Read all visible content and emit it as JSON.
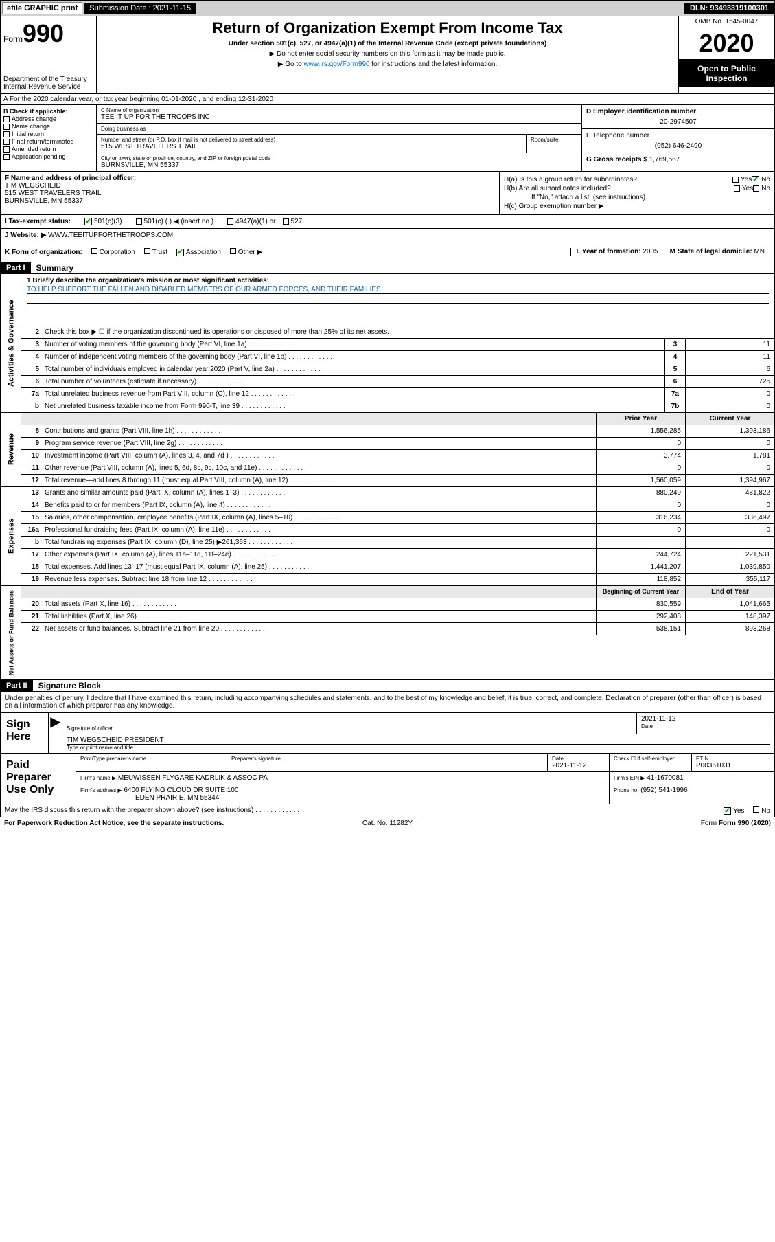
{
  "topbar": {
    "efile": "efile GRAPHIC print",
    "submission_label": "Submission Date : 2021-11-15",
    "dln": "DLN: 93493319100301"
  },
  "header": {
    "form_word": "Form",
    "form_num": "990",
    "dept": "Department of the Treasury Internal Revenue Service",
    "title": "Return of Organization Exempt From Income Tax",
    "subtitle": "Under section 501(c), 527, or 4947(a)(1) of the Internal Revenue Code (except private foundations)",
    "note1": "▶ Do not enter social security numbers on this form as it may be made public.",
    "note2_pre": "▶ Go to ",
    "note2_link": "www.irs.gov/Form990",
    "note2_post": " for instructions and the latest information.",
    "omb": "OMB No. 1545-0047",
    "year": "2020",
    "open": "Open to Public Inspection"
  },
  "row_a": "A For the 2020 calendar year, or tax year beginning 01-01-2020    , and ending 12-31-2020",
  "col_b": {
    "label": "B Check if applicable:",
    "items": [
      "Address change",
      "Name change",
      "Initial return",
      "Final return/terminated",
      "Amended return",
      "Application pending"
    ]
  },
  "col_c": {
    "name_label": "C Name of organization",
    "name": "TEE IT UP FOR THE TROOPS INC",
    "dba_label": "Doing business as",
    "dba": "",
    "addr_label": "Number and street (or P.O. box if mail is not delivered to street address)",
    "addr": "515 WEST TRAVELERS TRAIL",
    "room_label": "Room/suite",
    "room": "",
    "city_label": "City or town, state or province, country, and ZIP or foreign postal code",
    "city": "BURNSVILLE, MN  55337"
  },
  "col_d": {
    "ein_label": "D Employer identification number",
    "ein": "20-2974507",
    "phone_label": "E Telephone number",
    "phone": "(952) 646-2490",
    "gross_label": "G Gross receipts $",
    "gross": "1,769,567"
  },
  "col_f": {
    "label": "F Name and address of principal officer:",
    "name": "TIM WEGSCHEID",
    "addr1": "515 WEST TRAVELERS TRAIL",
    "addr2": "BURNSVILLE, MN  55337"
  },
  "col_h": {
    "ha": "H(a)  Is this a group return for subordinates?",
    "hb": "H(b)  Are all subordinates included?",
    "hb_note": "If \"No,\" attach a list. (see instructions)",
    "hc": "H(c)  Group exemption number ▶",
    "yes": "Yes",
    "no": "No"
  },
  "row_i": {
    "label": "I  Tax-exempt status:",
    "o1": "501(c)(3)",
    "o2": "501(c) (  ) ◀ (insert no.)",
    "o3": "4947(a)(1) or",
    "o4": "527"
  },
  "row_j": {
    "label": "J  Website: ▶",
    "val": "WWW.TEEITUPFORTHETROOPS.COM"
  },
  "row_k": {
    "label": "K Form of organization:",
    "opts": [
      "Corporation",
      "Trust",
      "Association",
      "Other ▶"
    ],
    "l_label": "L Year of formation:",
    "l_val": "2005",
    "m_label": "M State of legal domicile:",
    "m_val": "MN"
  },
  "part1": {
    "hdr": "Part I",
    "title": "Summary",
    "q1_label": "1  Briefly describe the organization's mission or most significant activities:",
    "q1_val": "TO HELP SUPPORT THE FALLEN AND DISABLED MEMBERS OF OUR ARMED FORCES, AND THEIR FAMILIES.",
    "q2": "Check this box ▶ ☐  if the organization discontinued its operations or disposed of more than 25% of its net assets.",
    "lines_gov": [
      {
        "n": "3",
        "t": "Number of voting members of the governing body (Part VI, line 1a)",
        "box": "3",
        "v": "11"
      },
      {
        "n": "4",
        "t": "Number of independent voting members of the governing body (Part VI, line 1b)",
        "box": "4",
        "v": "11"
      },
      {
        "n": "5",
        "t": "Total number of individuals employed in calendar year 2020 (Part V, line 2a)",
        "box": "5",
        "v": "6"
      },
      {
        "n": "6",
        "t": "Total number of volunteers (estimate if necessary)",
        "box": "6",
        "v": "725"
      },
      {
        "n": "7a",
        "t": "Total unrelated business revenue from Part VIII, column (C), line 12",
        "box": "7a",
        "v": "0"
      },
      {
        "n": "b",
        "t": "Net unrelated business taxable income from Form 990-T, line 39",
        "box": "7b",
        "v": "0"
      }
    ],
    "col_hdrs": {
      "py": "Prior Year",
      "cy": "Current Year"
    },
    "lines_rev": [
      {
        "n": "8",
        "t": "Contributions and grants (Part VIII, line 1h)",
        "py": "1,556,285",
        "cy": "1,393,186"
      },
      {
        "n": "9",
        "t": "Program service revenue (Part VIII, line 2g)",
        "py": "0",
        "cy": "0"
      },
      {
        "n": "10",
        "t": "Investment income (Part VIII, column (A), lines 3, 4, and 7d )",
        "py": "3,774",
        "cy": "1,781"
      },
      {
        "n": "11",
        "t": "Other revenue (Part VIII, column (A), lines 5, 6d, 8c, 9c, 10c, and 11e)",
        "py": "0",
        "cy": "0"
      },
      {
        "n": "12",
        "t": "Total revenue—add lines 8 through 11 (must equal Part VIII, column (A), line 12)",
        "py": "1,560,059",
        "cy": "1,394,967"
      }
    ],
    "lines_exp": [
      {
        "n": "13",
        "t": "Grants and similar amounts paid (Part IX, column (A), lines 1–3)",
        "py": "880,249",
        "cy": "481,822"
      },
      {
        "n": "14",
        "t": "Benefits paid to or for members (Part IX, column (A), line 4)",
        "py": "0",
        "cy": "0"
      },
      {
        "n": "15",
        "t": "Salaries, other compensation, employee benefits (Part IX, column (A), lines 5–10)",
        "py": "316,234",
        "cy": "336,497"
      },
      {
        "n": "16a",
        "t": "Professional fundraising fees (Part IX, column (A), line 11e)",
        "py": "0",
        "cy": "0"
      },
      {
        "n": "b",
        "t": "Total fundraising expenses (Part IX, column (D), line 25) ▶261,363",
        "py": "",
        "cy": ""
      },
      {
        "n": "17",
        "t": "Other expenses (Part IX, column (A), lines 11a–11d, 11f–24e)",
        "py": "244,724",
        "cy": "221,531"
      },
      {
        "n": "18",
        "t": "Total expenses. Add lines 13–17 (must equal Part IX, column (A), line 25)",
        "py": "1,441,207",
        "cy": "1,039,850"
      },
      {
        "n": "19",
        "t": "Revenue less expenses. Subtract line 18 from line 12",
        "py": "118,852",
        "cy": "355,117"
      }
    ],
    "col_hdrs2": {
      "py": "Beginning of Current Year",
      "cy": "End of Year"
    },
    "lines_net": [
      {
        "n": "20",
        "t": "Total assets (Part X, line 16)",
        "py": "830,559",
        "cy": "1,041,665"
      },
      {
        "n": "21",
        "t": "Total liabilities (Part X, line 26)",
        "py": "292,408",
        "cy": "148,397"
      },
      {
        "n": "22",
        "t": "Net assets or fund balances. Subtract line 21 from line 20",
        "py": "538,151",
        "cy": "893,268"
      }
    ],
    "vtabs": {
      "gov": "Activities & Governance",
      "rev": "Revenue",
      "exp": "Expenses",
      "net": "Net Assets or Fund Balances"
    }
  },
  "part2": {
    "hdr": "Part II",
    "title": "Signature Block",
    "decl": "Under penalties of perjury, I declare that I have examined this return, including accompanying schedules and statements, and to the best of my knowledge and belief, it is true, correct, and complete. Declaration of preparer (other than officer) is based on all information of which preparer has any knowledge.",
    "sign_here": "Sign Here",
    "sig_officer": "Signature of officer",
    "sig_date": "2021-11-12",
    "date_label": "Date",
    "officer_name": "TIM WEGSCHEID PRESIDENT",
    "type_label": "Type or print name and title",
    "paid_label": "Paid Preparer Use Only",
    "prep_name_label": "Print/Type preparer's name",
    "prep_sig_label": "Preparer's signature",
    "prep_date_label": "Date",
    "prep_date": "2021-11-12",
    "check_label": "Check ☐ if self-employed",
    "ptin_label": "PTIN",
    "ptin": "P00361031",
    "firm_name_label": "Firm's name    ▶",
    "firm_name": "MEUWISSEN FLYGARE KADRLIK & ASSOC PA",
    "firm_ein_label": "Firm's EIN ▶",
    "firm_ein": "41-1670081",
    "firm_addr_label": "Firm's address ▶",
    "firm_addr1": "6400 FLYING CLOUD DR SUITE 100",
    "firm_addr2": "EDEN PRAIRIE, MN  55344",
    "firm_phone_label": "Phone no.",
    "firm_phone": "(952) 541-1996",
    "discuss": "May the IRS discuss this return with the preparer shown above? (see instructions)",
    "yes": "Yes",
    "no": "No"
  },
  "footer": {
    "pra": "For Paperwork Reduction Act Notice, see the separate instructions.",
    "cat": "Cat. No. 11282Y",
    "form": "Form 990 (2020)"
  },
  "colors": {
    "black": "#000000",
    "link": "#0066cc",
    "check_green": "#00aa00",
    "gray_bg": "#d0d0d0",
    "light_gray": "#e8e8e8"
  }
}
